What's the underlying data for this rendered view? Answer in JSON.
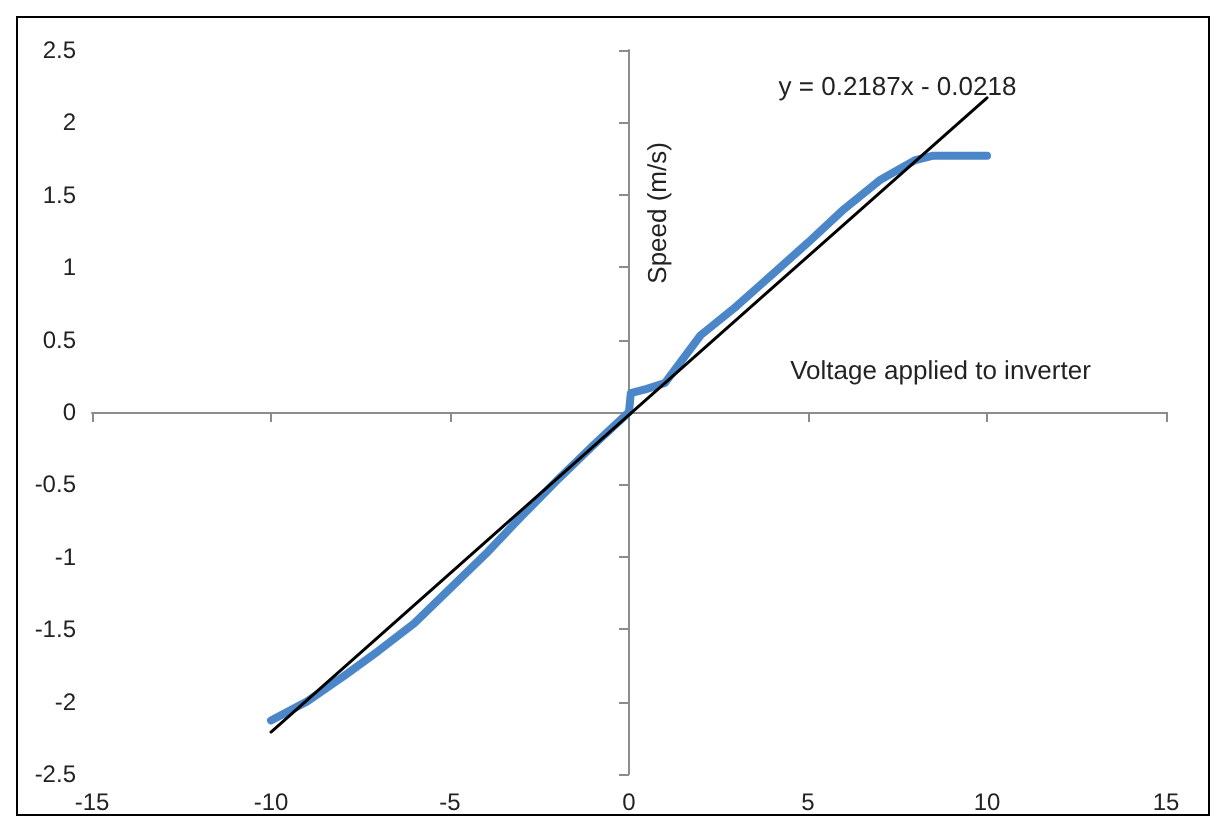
{
  "chart_data": {
    "type": "line",
    "xlabel": "Voltage applied to inverter",
    "ylabel": "Speed (m/s)",
    "annotations": [
      "y = 0.2187x - 0.0218"
    ],
    "series": [
      {
        "color": "#4a86c8",
        "x": [
          -10,
          -9,
          -8,
          -7,
          -6,
          -5,
          -4,
          -3,
          -2,
          -1,
          0,
          0.05,
          0.5,
          1,
          2,
          3,
          4,
          5,
          6,
          7,
          8,
          8.5,
          10
        ],
        "values": [
          -2.13,
          -2.0,
          -1.83,
          -1.65,
          -1.46,
          -1.22,
          -0.98,
          -0.72,
          -0.47,
          -0.23,
          0,
          0.13,
          0.16,
          0.2,
          0.53,
          0.73,
          0.95,
          1.17,
          1.4,
          1.6,
          1.74,
          1.77,
          1.77
        ]
      },
      {
        "color": "#000000",
        "x": [
          -10,
          10
        ],
        "values": [
          -2.21,
          2.17
        ]
      }
    ],
    "xlim": [
      -15,
      15
    ],
    "xticks": [
      -15,
      -10,
      -5,
      0,
      5,
      10,
      15
    ],
    "ylim": [
      -2.5,
      2.5
    ],
    "yticks": [
      -2.5,
      -2,
      -1.5,
      -1,
      -0.5,
      0,
      0.5,
      1,
      1.5,
      2,
      2.5
    ],
    "marker": "none",
    "line_style": "solid"
  }
}
